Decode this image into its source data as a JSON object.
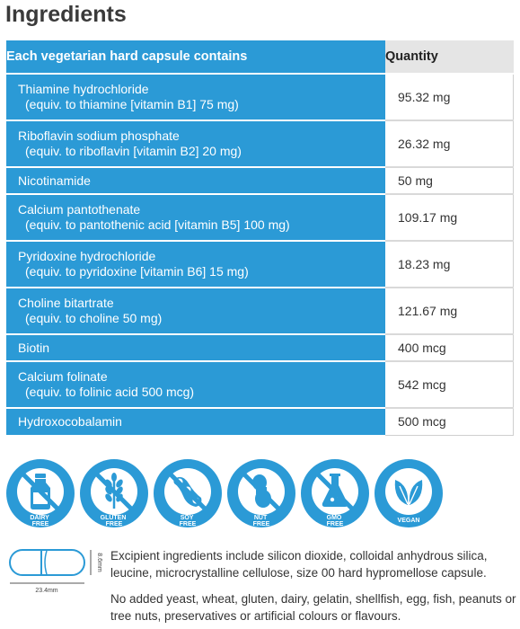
{
  "title": "Ingredients",
  "table": {
    "header_ingredient": "Each vegetarian hard capsule contains",
    "header_quantity": "Quantity",
    "rows": [
      {
        "name": "Thiamine hydrochloride",
        "sub": "(equiv. to thiamine [vitamin B1] 75 mg)",
        "qty": "95.32 mg"
      },
      {
        "name": "Riboflavin sodium phosphate",
        "sub": "(equiv. to riboflavin [vitamin B2] 20 mg)",
        "qty": "26.32 mg"
      },
      {
        "name": "Nicotinamide",
        "sub": "",
        "qty": "50 mg"
      },
      {
        "name": "Calcium pantothenate",
        "sub": "(equiv. to pantothenic acid [vitamin B5] 100 mg)",
        "qty": "109.17 mg"
      },
      {
        "name": "Pyridoxine hydrochloride",
        "sub": "(equiv. to pyridoxine [vitamin B6] 15 mg)",
        "qty": "18.23 mg"
      },
      {
        "name": "Choline bitartrate",
        "sub": "(equiv. to choline 50 mg)",
        "qty": "121.67 mg"
      },
      {
        "name": "Biotin",
        "sub": "",
        "qty": "400 mcg"
      },
      {
        "name": "Calcium folinate",
        "sub": "(equiv. to folinic acid 500 mcg)",
        "qty": "542 mcg"
      },
      {
        "name": "Hydroxocobalamin",
        "sub": "",
        "qty": "500 mcg"
      }
    ]
  },
  "badges": [
    {
      "line1": "DAIRY",
      "line2": "FREE",
      "icon": "milk-bottle-icon"
    },
    {
      "line1": "GLUTEN",
      "line2": "FREE",
      "icon": "wheat-icon"
    },
    {
      "line1": "SOY",
      "line2": "FREE",
      "icon": "soybean-icon"
    },
    {
      "line1": "NUT",
      "line2": "FREE",
      "icon": "peanut-icon"
    },
    {
      "line1": "GMO",
      "line2": "FREE",
      "icon": "flask-icon"
    },
    {
      "line1": "VEGAN",
      "line2": "",
      "icon": "leaves-icon"
    }
  ],
  "capsule": {
    "length": "23.4mm",
    "width": "8.6mm"
  },
  "excipients": "Excipient ingredients include silicon dioxide, colloidal anhydrous silica, leucine, microcrystalline cellulose, size 00 hard hypromellose capsule.",
  "no_added": "No added yeast, wheat, gluten, dairy, gelatin, shellfish, egg, fish, peanuts or tree nuts, preservatives or artificial colours or flavours.",
  "colors": {
    "brand_blue": "#2b9ad6",
    "header_gray": "#e5e5e5"
  }
}
